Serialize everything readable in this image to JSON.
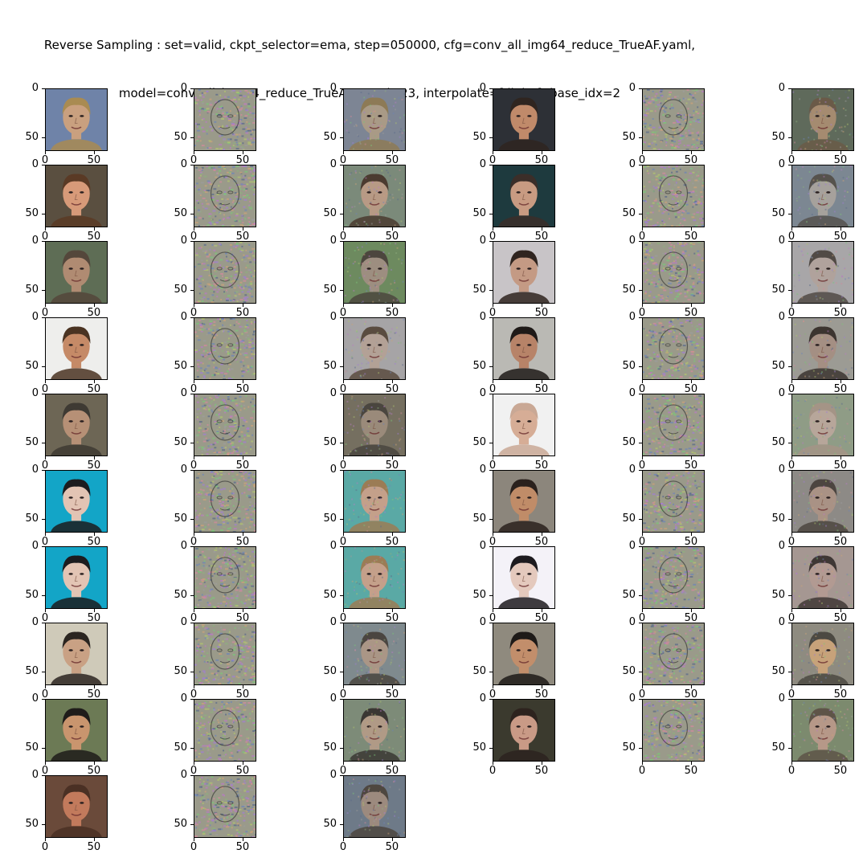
{
  "figure": {
    "title_line1": "Reverse Sampling : set=valid, ckpt_selector=ema, step=050000, cfg=conv_all_img64_reduce_TrueAF.yaml,",
    "title_line2": "model=conv_all_img64_reduce_TrueAF, seed=23, interpolate=['light'], base_idx=2"
  },
  "chart_data": {
    "type": "image-grid",
    "rows": 10,
    "cols": 6,
    "tick_labels_y": [
      "0",
      "50"
    ],
    "tick_labels_x": [
      "0",
      "50"
    ],
    "y_ticks": [
      0,
      50
    ],
    "x_ticks": [
      0,
      50
    ],
    "image_size": 64,
    "panels": [
      [
        {
          "kind": "face",
          "skin": "#c9a07f",
          "bg": "#6f83a8",
          "hair": "#a98b52"
        },
        {
          "kind": "noise"
        },
        {
          "kind": "recon",
          "skin": "#a99a86",
          "bg": "#7d8594",
          "hair": "#8d7a56"
        },
        {
          "kind": "face",
          "skin": "#c08a6a",
          "bg": "#2d3036",
          "hair": "#2f2520"
        },
        {
          "kind": "noise"
        },
        {
          "kind": "recon",
          "skin": "#a58b70",
          "bg": "#5f6a5b",
          "hair": "#6a5a48"
        }
      ],
      [
        {
          "kind": "face",
          "skin": "#d79a79",
          "bg": "#5a4f40",
          "hair": "#5a3a25"
        },
        {
          "kind": "noise"
        },
        {
          "kind": "recon",
          "skin": "#b79a85",
          "bg": "#7b8a7a",
          "hair": "#4b3b30"
        },
        {
          "kind": "face",
          "skin": "#c89b82",
          "bg": "#1e3a3e",
          "hair": "#3b2e29"
        },
        {
          "kind": "noise"
        },
        {
          "kind": "recon",
          "skin": "#a6a19c",
          "bg": "#7c8792",
          "hair": "#56524d"
        }
      ],
      [
        {
          "kind": "face",
          "skin": "#b08b72",
          "bg": "#5e6d55",
          "hair": "#54473b"
        },
        {
          "kind": "noise"
        },
        {
          "kind": "recon",
          "skin": "#9d8e80",
          "bg": "#6d8a5f",
          "hair": "#4c463e"
        },
        {
          "kind": "face",
          "skin": "#c49a84",
          "bg": "#c8c4c7",
          "hair": "#2f241f"
        },
        {
          "kind": "noise"
        },
        {
          "kind": "recon",
          "skin": "#b0a29c",
          "bg": "#a8a6a8",
          "hair": "#514a45"
        }
      ],
      [
        {
          "kind": "face",
          "skin": "#c58a67",
          "bg": "#eeeeec",
          "hair": "#4a3322"
        },
        {
          "kind": "noise"
        },
        {
          "kind": "recon",
          "skin": "#b3a196",
          "bg": "#a6a4a6",
          "hair": "#5a4c40"
        },
        {
          "kind": "face",
          "skin": "#b78368",
          "bg": "#bab9b4",
          "hair": "#1f1a18"
        },
        {
          "kind": "noise"
        },
        {
          "kind": "recon",
          "skin": "#a48f83",
          "bg": "#9c9b94",
          "hair": "#3c3530"
        }
      ],
      [
        {
          "kind": "face",
          "skin": "#b69076",
          "bg": "#6d6655",
          "hair": "#3e3a33"
        },
        {
          "kind": "noise"
        },
        {
          "kind": "recon",
          "skin": "#9a8a7a",
          "bg": "#756f60",
          "hair": "#4a463f"
        },
        {
          "kind": "face",
          "skin": "#d6ad96",
          "bg": "#f1f1f1",
          "hair": "#c9a895"
        },
        {
          "kind": "noise"
        },
        {
          "kind": "recon",
          "skin": "#b7a69a",
          "bg": "#8f9c86",
          "hair": "#a49486"
        }
      ],
      [
        {
          "kind": "face",
          "skin": "#e2c4b4",
          "bg": "#13a5c7",
          "hair": "#1c1c1f"
        },
        {
          "kind": "noise"
        },
        {
          "kind": "recon",
          "skin": "#c4a08a",
          "bg": "#5aa9a5",
          "hair": "#9b7c55"
        },
        {
          "kind": "face",
          "skin": "#c08c68",
          "bg": "#8c867c",
          "hair": "#2a211d"
        },
        {
          "kind": "noise"
        },
        {
          "kind": "recon",
          "skin": "#a99285",
          "bg": "#8d8a86",
          "hair": "#4c4540"
        }
      ],
      [
        {
          "kind": "face",
          "skin": "#e2c4b4",
          "bg": "#13a5c7",
          "hair": "#1c1c1f"
        },
        {
          "kind": "noise"
        },
        {
          "kind": "recon",
          "skin": "#c4a08a",
          "bg": "#5aa9a5",
          "hair": "#9b7c55"
        },
        {
          "kind": "face",
          "skin": "#e4c9bd",
          "bg": "#f4f2f8",
          "hair": "#1d1b1f"
        },
        {
          "kind": "noise"
        },
        {
          "kind": "recon",
          "skin": "#b29a92",
          "bg": "#a59792",
          "hair": "#3f3735"
        }
      ],
      [
        {
          "kind": "face",
          "skin": "#c9a184",
          "bg": "#cfcab9",
          "hair": "#2b2520"
        },
        {
          "kind": "noise"
        },
        {
          "kind": "recon",
          "skin": "#aa9686",
          "bg": "#7f8a8e",
          "hair": "#4a4540"
        },
        {
          "kind": "face",
          "skin": "#c28e6b",
          "bg": "#8f8a7e",
          "hair": "#1e1a18"
        },
        {
          "kind": "noise"
        },
        {
          "kind": "recon",
          "skin": "#c7a27a",
          "bg": "#8e8b80",
          "hair": "#4c4942"
        }
      ],
      [
        {
          "kind": "face",
          "skin": "#c9956e",
          "bg": "#6c7a55",
          "hair": "#1f1c1a"
        },
        {
          "kind": "noise"
        },
        {
          "kind": "recon",
          "skin": "#b09a86",
          "bg": "#7d8b78",
          "hair": "#3a3733"
        },
        {
          "kind": "face",
          "skin": "#c99a86",
          "bg": "#3b3a2e",
          "hair": "#2d231e"
        },
        {
          "kind": "noise"
        },
        {
          "kind": "recon",
          "skin": "#b69888",
          "bg": "#7c8a6e",
          "hair": "#5e5448"
        }
      ],
      [
        {
          "kind": "face",
          "skin": "#c27a5c",
          "bg": "#6a4a3a",
          "hair": "#4a3024"
        },
        {
          "kind": "noise"
        },
        {
          "kind": "recon",
          "skin": "#9c8a7e",
          "bg": "#6e7a88",
          "hair": "#4e4740"
        },
        {
          "kind": "empty"
        },
        {
          "kind": "empty"
        },
        {
          "kind": "empty"
        }
      ]
    ]
  }
}
